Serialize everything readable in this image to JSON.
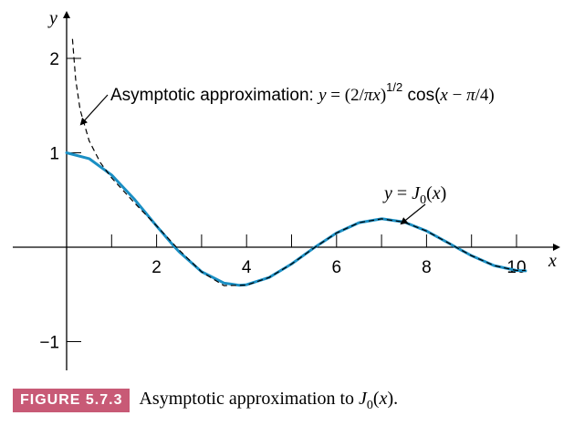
{
  "chart_data": {
    "type": "line",
    "x_axis_label": "x",
    "y_axis_label": "y",
    "xlim": [
      0,
      10.5
    ],
    "ylim": [
      -1.3,
      2.4
    ],
    "x_ticks": [
      1,
      2,
      3,
      4,
      5,
      6,
      7,
      8,
      9,
      10
    ],
    "x_tick_labels": [
      {
        "value": 2,
        "label": "2"
      },
      {
        "value": 4,
        "label": "4"
      },
      {
        "value": 6,
        "label": "6"
      },
      {
        "value": 8,
        "label": "8"
      },
      {
        "value": 10,
        "label": "10"
      }
    ],
    "y_ticks": [
      {
        "value": 2,
        "label": "2"
      },
      {
        "value": 1,
        "label": "1"
      },
      {
        "value": -1,
        "label": "−1"
      }
    ],
    "series": [
      {
        "style": "solid",
        "color": "#1a8fc4",
        "x": [
          0,
          0.5,
          1,
          1.5,
          2,
          2.405,
          2.5,
          3,
          3.5,
          3.832,
          4,
          4.5,
          5,
          5.5,
          5.52,
          6,
          6.5,
          7,
          7.016,
          7.5,
          8,
          8.5,
          8.654,
          9,
          9.5,
          10,
          10.2
        ],
        "y": [
          1,
          0.9385,
          0.7652,
          0.5118,
          0.2239,
          0,
          -0.0484,
          -0.2601,
          -0.3801,
          -0.4028,
          -0.3971,
          -0.3205,
          -0.1776,
          -0.0068,
          0,
          0.1506,
          0.2601,
          0.3001,
          0.3001,
          0.2663,
          0.1717,
          0.0419,
          0,
          -0.0903,
          -0.1939,
          -0.2459,
          -0.2499
        ]
      },
      {
        "style": "dashed",
        "color": "#000000",
        "x": [
          0.13,
          0.2,
          0.3,
          0.5,
          0.75,
          1,
          1.5,
          2,
          2.5,
          3,
          3.5,
          4,
          4.5,
          5,
          5.5,
          6,
          6.5,
          7,
          7.5,
          8,
          8.5,
          9,
          9.5,
          10,
          10.2
        ],
        "y": [
          2.206,
          1.777,
          1.456,
          1.127,
          0.896,
          0.734,
          0.4745,
          0.2257,
          -0.0303,
          -0.2606,
          -0.4065,
          -0.4023,
          -0.3207,
          -0.1779,
          -0.0078,
          0.1505,
          0.2602,
          0.3002,
          0.2659,
          0.1713,
          0.0419,
          -0.0903,
          -0.1941,
          -0.2459,
          -0.2465
        ]
      }
    ],
    "annotations": [
      {
        "name": "asymptotic",
        "prefix": "Asymptotic approximation: ",
        "y": "y",
        "eq": " = (2/",
        "pi": "π",
        "x": "x",
        "close": ")",
        "exp": "1/2",
        "cos": " cos(",
        "x2": "x",
        "minus": " − ",
        "pi2": "π",
        "tail": "/4)"
      },
      {
        "name": "bessel",
        "y": "y",
        "eq": " = ",
        "J": "J",
        "sub": "0",
        "open": "(",
        "x": "x",
        "close": ")"
      }
    ]
  },
  "caption": {
    "label": "FIGURE 5.7.3",
    "text": "Asymptotic approximation to ",
    "J": "J",
    "sub": "0",
    "open": "(",
    "x": "x",
    "close": ")."
  }
}
